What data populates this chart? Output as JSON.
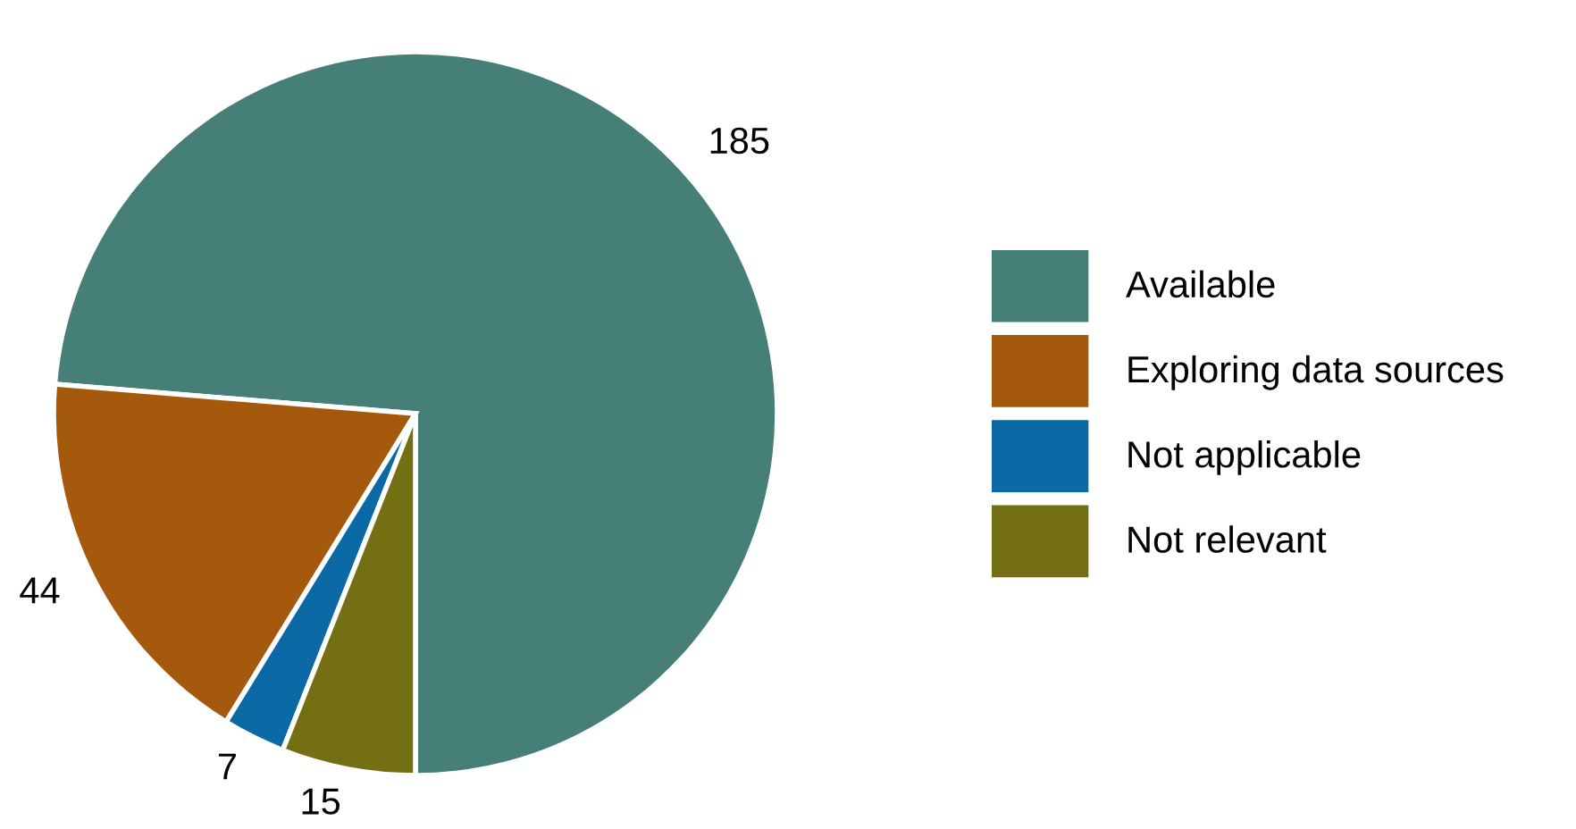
{
  "chart_data": {
    "type": "pie",
    "categories": [
      "Available",
      "Exploring data sources",
      "Not applicable",
      "Not relevant"
    ],
    "values": [
      185,
      44,
      7,
      15
    ],
    "colors": [
      "#467f78",
      "#a5590d",
      "#0b6aa6",
      "#756f13"
    ],
    "data_labels": true,
    "legend": "right"
  }
}
